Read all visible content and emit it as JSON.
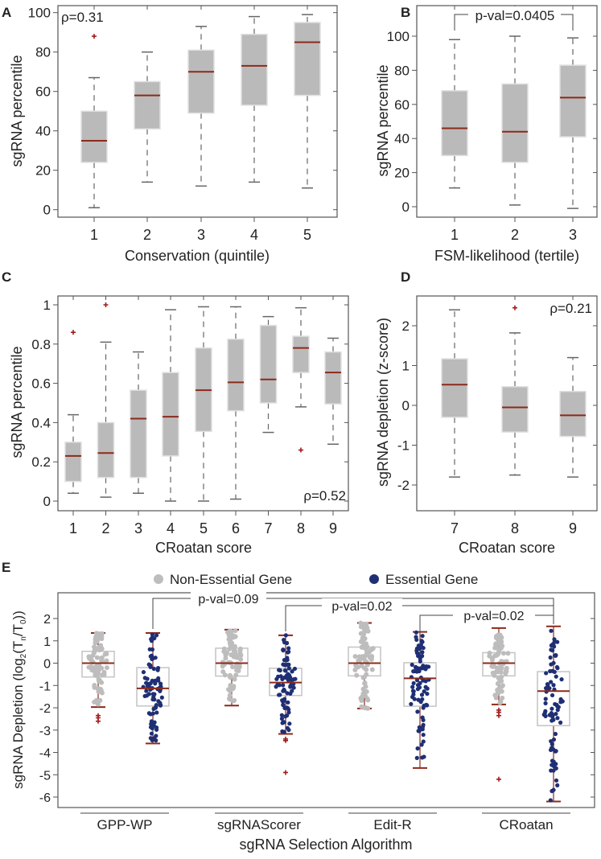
{
  "colors": {
    "box_fill": "#bbbabb",
    "median": "#8b2a1a",
    "outlier": "#a01c1c",
    "whisker": "#666666",
    "non_essential": "#bdbdbd",
    "essential": "#1f2f74",
    "frame": "#555555"
  },
  "chart_data": [
    {
      "panel": "A",
      "type": "box",
      "annotation": "ρ=0.31",
      "xlabel": "Conservation (quintile)",
      "ylabel": "sgRNA percentile",
      "ylim": [
        -7,
        104
      ],
      "yticks": [
        0,
        20,
        40,
        60,
        80,
        100
      ],
      "ytick_labels": [
        "0",
        "20",
        "40",
        "60",
        "80",
        "100"
      ],
      "categories": [
        "1",
        "2",
        "3",
        "4",
        "5"
      ],
      "boxes": [
        {
          "wl": 1,
          "q1": 24,
          "med": 35,
          "q3": 50,
          "wh": 67,
          "outliers": [
            88
          ]
        },
        {
          "wl": 14,
          "q1": 41,
          "med": 58,
          "q3": 65,
          "wh": 80,
          "outliers": []
        },
        {
          "wl": 12,
          "q1": 49,
          "med": 70,
          "q3": 81,
          "wh": 93,
          "outliers": []
        },
        {
          "wl": 14,
          "q1": 53,
          "med": 73,
          "q3": 89,
          "wh": 98,
          "outliers": []
        },
        {
          "wl": 11,
          "q1": 58,
          "med": 85,
          "q3": 95,
          "wh": 99,
          "outliers": []
        }
      ]
    },
    {
      "panel": "B",
      "type": "box",
      "annotation": "p-val=0.0405",
      "xlabel": "FSM-likelihood (tertile)",
      "ylabel": "sgRNA percentile",
      "ylim": [
        -6,
        118
      ],
      "yticks": [
        0,
        20,
        40,
        60,
        80,
        100
      ],
      "ytick_labels": [
        "0",
        "20",
        "40",
        "60",
        "80",
        "100"
      ],
      "categories": [
        "1",
        "2",
        "3"
      ],
      "boxes": [
        {
          "wl": 11,
          "q1": 30,
          "med": 46,
          "q3": 68,
          "wh": 98,
          "outliers": []
        },
        {
          "wl": 1,
          "q1": 26,
          "med": 44,
          "q3": 72,
          "wh": 100,
          "outliers": []
        },
        {
          "wl": -1,
          "q1": 41,
          "med": 64,
          "q3": 83,
          "wh": 99,
          "outliers": []
        }
      ],
      "comparison": {
        "from": 1,
        "to": 3,
        "label": "p-val=0.0405"
      }
    },
    {
      "panel": "C",
      "type": "box",
      "annotation": "ρ=0.52",
      "xlabel": "CRoatan score",
      "ylabel": "sgRNA percentile",
      "ylim": [
        -0.05,
        1.04
      ],
      "yticks": [
        0,
        0.2,
        0.4,
        0.6,
        0.8,
        1
      ],
      "ytick_labels": [
        "0",
        "0.2",
        "0.4",
        "0.6",
        "0.8",
        "1"
      ],
      "categories": [
        "1",
        "2",
        "3",
        "4",
        "5",
        "6",
        "7",
        "8",
        "9"
      ],
      "boxes": [
        {
          "wl": 0.04,
          "q1": 0.1,
          "med": 0.23,
          "q3": 0.3,
          "wh": 0.44,
          "outliers": [
            0.86
          ]
        },
        {
          "wl": 0.02,
          "q1": 0.12,
          "med": 0.245,
          "q3": 0.4,
          "wh": 0.81,
          "outliers": [
            1.0
          ]
        },
        {
          "wl": 0.04,
          "q1": 0.12,
          "med": 0.42,
          "q3": 0.565,
          "wh": 0.76,
          "outliers": []
        },
        {
          "wl": 0.0,
          "q1": 0.23,
          "med": 0.43,
          "q3": 0.655,
          "wh": 0.975,
          "outliers": []
        },
        {
          "wl": 0.0,
          "q1": 0.355,
          "med": 0.565,
          "q3": 0.78,
          "wh": 0.99,
          "outliers": []
        },
        {
          "wl": 0.01,
          "q1": 0.46,
          "med": 0.605,
          "q3": 0.825,
          "wh": 0.99,
          "outliers": []
        },
        {
          "wl": 0.35,
          "q1": 0.5,
          "med": 0.62,
          "q3": 0.895,
          "wh": 0.94,
          "outliers": []
        },
        {
          "wl": 0.48,
          "q1": 0.655,
          "med": 0.78,
          "q3": 0.84,
          "wh": 0.985,
          "outliers": [
            0.26
          ]
        },
        {
          "wl": 0.29,
          "q1": 0.495,
          "med": 0.655,
          "q3": 0.76,
          "wh": 0.83,
          "outliers": []
        }
      ]
    },
    {
      "panel": "D",
      "type": "box",
      "annotation": "ρ=0.21",
      "xlabel": "CRoatan score",
      "ylabel": "sgRNA depletion (z-score)",
      "ylim": [
        -2.2,
        2.7
      ],
      "yticks": [
        -2,
        -1,
        0,
        1,
        2
      ],
      "ytick_labels": [
        "-2",
        "-1",
        "0",
        "1",
        "2"
      ],
      "categories": [
        "7",
        "8",
        "9"
      ],
      "boxes": [
        {
          "wl": -1.8,
          "q1": -0.3,
          "med": 0.52,
          "q3": 1.17,
          "wh": 2.4,
          "outliers": []
        },
        {
          "wl": -1.75,
          "q1": -0.67,
          "med": -0.05,
          "q3": 0.47,
          "wh": 1.82,
          "outliers": [
            2.45
          ]
        },
        {
          "wl": -1.8,
          "q1": -0.78,
          "med": -0.25,
          "q3": 0.35,
          "wh": 1.2,
          "outliers": []
        }
      ]
    },
    {
      "panel": "E",
      "type": "box+swarm",
      "xlabel": "sgRNA Selection Algorithm",
      "ylabel_parts": [
        "sgRNA Depletion (log",
        "2",
        "(T",
        "n",
        "/T",
        "0",
        "))"
      ],
      "ylim": [
        -6.5,
        3.1
      ],
      "yticks": [
        -6,
        -5,
        -4,
        -3,
        -2,
        -1,
        0,
        1,
        2
      ],
      "ytick_labels": [
        "-6",
        "-5",
        "-4",
        "-3",
        "-2",
        "-1",
        "0",
        "1",
        "2"
      ],
      "legend": [
        {
          "label": "Non-Essential Gene",
          "color": "#bdbdbd"
        },
        {
          "label": "Essential Gene",
          "color": "#1f2f74"
        }
      ],
      "legend_position": "top-center",
      "groups": [
        "GPP-WP",
        "sgRNAScorer",
        "Edit-R",
        "CRoatan"
      ],
      "boxes": [
        {
          "group": "GPP-WP",
          "series": "Non-Essential Gene",
          "wl": -1.97,
          "q1": -0.62,
          "med": 0,
          "q3": 0.53,
          "wh": 1.35,
          "outliers": [
            -2.35,
            -2.45,
            -2.6
          ],
          "n": 80
        },
        {
          "group": "GPP-WP",
          "series": "Essential Gene",
          "wl": -3.6,
          "q1": -1.92,
          "med": -1.13,
          "q3": -0.2,
          "wh": 1.35,
          "outliers": [],
          "n": 80
        },
        {
          "group": "sgRNAScorer",
          "series": "Non-Essential Gene",
          "wl": -1.9,
          "q1": -0.58,
          "med": 0,
          "q3": 0.67,
          "wh": 1.5,
          "outliers": [],
          "n": 80
        },
        {
          "group": "sgRNAScorer",
          "series": "Essential Gene",
          "wl": -3.17,
          "q1": -1.45,
          "med": -0.87,
          "q3": -0.23,
          "wh": 1.25,
          "outliers": [
            -3.4,
            -3.47,
            -4.9
          ],
          "n": 80
        },
        {
          "group": "Edit-R",
          "series": "Non-Essential Gene",
          "wl": -2.03,
          "q1": -0.57,
          "med": 0,
          "q3": 0.72,
          "wh": 1.8,
          "outliers": [],
          "n": 80
        },
        {
          "group": "Edit-R",
          "series": "Essential Gene",
          "wl": -4.7,
          "q1": -1.93,
          "med": -0.68,
          "q3": 0.02,
          "wh": 1.4,
          "outliers": [],
          "n": 80
        },
        {
          "group": "CRoatan",
          "series": "Non-Essential Gene",
          "wl": -1.85,
          "q1": -0.57,
          "med": 0,
          "q3": 0.47,
          "wh": 1.57,
          "outliers": [
            -2.1,
            -2.2,
            -2.35,
            -5.2
          ],
          "n": 80
        },
        {
          "group": "CRoatan",
          "series": "Essential Gene",
          "wl": -6.2,
          "q1": -2.8,
          "med": -1.25,
          "q3": -0.38,
          "wh": 1.65,
          "outliers": [],
          "n": 80
        }
      ],
      "comparisons": [
        {
          "from": "GPP-WP Essential",
          "to": "CRoatan Essential",
          "label": "p-val=0.09"
        },
        {
          "from": "sgRNAScorer Essential",
          "to": "CRoatan Essential",
          "label": "p-val=0.02"
        },
        {
          "from": "Edit-R Essential",
          "to": "CRoatan Essential",
          "label": "p-val=0.02"
        }
      ]
    }
  ]
}
